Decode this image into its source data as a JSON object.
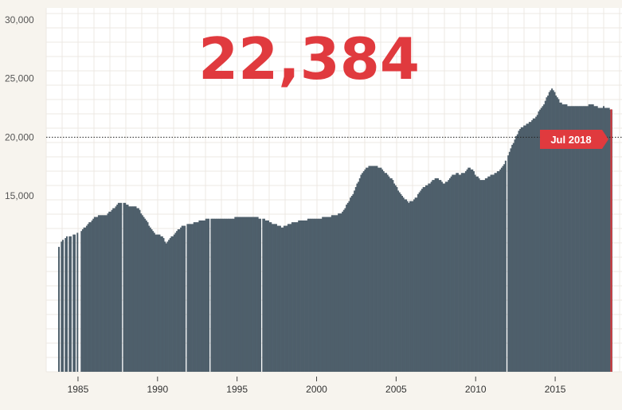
{
  "headline": "22,384",
  "colors": {
    "background": "#f7f4ee",
    "plot_background": "#ffffff",
    "grid": "#ece9e3",
    "area": "#4e5f6b",
    "accent": "#e03a3e"
  },
  "callout": {
    "label": "Jul 2018"
  },
  "chart_data": {
    "type": "area",
    "title": "",
    "xlabel": "",
    "ylabel": "",
    "xlim": [
      1983.0,
      2018.6
    ],
    "ylim": [
      0,
      30000
    ],
    "yticks": [
      15000,
      20000,
      25000,
      30000
    ],
    "ytick_labels": [
      "15,000",
      "20,000",
      "25,000",
      "30,000"
    ],
    "xticks": [
      1985,
      1990,
      1995,
      2000,
      2005,
      2010,
      2015
    ],
    "reference_line": 20000,
    "grid": true,
    "gaps": [
      1985.0,
      1987.75,
      1991.75,
      1993.25,
      1996.5,
      2011.9
    ],
    "missing_before": 1983.75,
    "series": [
      {
        "points": [
          [
            1983.75,
            10700
          ],
          [
            1984.0,
            11200
          ],
          [
            1984.25,
            11500
          ],
          [
            1984.5,
            11600
          ],
          [
            1985.0,
            11900
          ],
          [
            1985.25,
            12100
          ],
          [
            1985.5,
            12500
          ],
          [
            1985.75,
            12800
          ],
          [
            1986.0,
            13200
          ],
          [
            1986.25,
            13300
          ],
          [
            1986.75,
            13400
          ],
          [
            1987.0,
            13700
          ],
          [
            1987.25,
            14000
          ],
          [
            1987.5,
            14350
          ],
          [
            1987.75,
            14500
          ],
          [
            1988.0,
            14300
          ],
          [
            1988.25,
            14100
          ],
          [
            1988.75,
            14000
          ],
          [
            1989.0,
            13300
          ],
          [
            1989.25,
            12900
          ],
          [
            1989.5,
            12300
          ],
          [
            1989.75,
            11800
          ],
          [
            1990.0,
            11700
          ],
          [
            1990.25,
            11500
          ],
          [
            1990.5,
            11000
          ],
          [
            1990.75,
            11400
          ],
          [
            1991.0,
            11700
          ],
          [
            1991.25,
            12100
          ],
          [
            1991.5,
            12400
          ],
          [
            1991.75,
            12500
          ],
          [
            1992.0,
            12600
          ],
          [
            1992.25,
            12700
          ],
          [
            1992.5,
            12800
          ],
          [
            1992.75,
            12900
          ],
          [
            1993.0,
            13000
          ],
          [
            1993.5,
            13050
          ],
          [
            1994.0,
            13000
          ],
          [
            1994.5,
            13100
          ],
          [
            1995.0,
            13150
          ],
          [
            1995.5,
            13200
          ],
          [
            1996.0,
            13150
          ],
          [
            1996.5,
            13100
          ],
          [
            1997.0,
            12800
          ],
          [
            1997.25,
            12600
          ],
          [
            1997.5,
            12500
          ],
          [
            1997.75,
            12350
          ],
          [
            1998.0,
            12400
          ],
          [
            1998.25,
            12600
          ],
          [
            1998.5,
            12750
          ],
          [
            1999.0,
            12900
          ],
          [
            1999.5,
            13000
          ],
          [
            2000.0,
            13000
          ],
          [
            2000.5,
            13200
          ],
          [
            2001.0,
            13300
          ],
          [
            2001.5,
            13500
          ],
          [
            2001.75,
            14000
          ],
          [
            2002.0,
            14600
          ],
          [
            2002.25,
            15200
          ],
          [
            2002.5,
            16000
          ],
          [
            2002.75,
            16800
          ],
          [
            2003.0,
            17300
          ],
          [
            2003.25,
            17500
          ],
          [
            2003.5,
            17600
          ],
          [
            2003.75,
            17500
          ],
          [
            2004.0,
            17350
          ],
          [
            2004.25,
            17000
          ],
          [
            2004.5,
            16700
          ],
          [
            2004.75,
            16300
          ],
          [
            2005.0,
            15700
          ],
          [
            2005.25,
            15100
          ],
          [
            2005.5,
            14750
          ],
          [
            2005.75,
            14450
          ],
          [
            2006.0,
            14550
          ],
          [
            2006.25,
            14900
          ],
          [
            2006.5,
            15450
          ],
          [
            2006.75,
            15800
          ],
          [
            2007.0,
            16000
          ],
          [
            2007.25,
            16300
          ],
          [
            2007.5,
            16500
          ],
          [
            2007.75,
            16300
          ],
          [
            2008.0,
            16000
          ],
          [
            2008.25,
            16400
          ],
          [
            2008.5,
            16750
          ],
          [
            2008.75,
            16900
          ],
          [
            2009.0,
            16850
          ],
          [
            2009.25,
            16950
          ],
          [
            2009.5,
            17400
          ],
          [
            2009.75,
            17200
          ],
          [
            2010.0,
            16700
          ],
          [
            2010.25,
            16350
          ],
          [
            2010.5,
            16350
          ],
          [
            2010.75,
            16600
          ],
          [
            2011.0,
            16800
          ],
          [
            2011.25,
            16950
          ],
          [
            2011.5,
            17200
          ],
          [
            2011.75,
            17700
          ],
          [
            2012.0,
            18500
          ],
          [
            2012.25,
            19300
          ],
          [
            2012.5,
            20100
          ],
          [
            2012.75,
            20700
          ],
          [
            2013.0,
            21000
          ],
          [
            2013.25,
            21150
          ],
          [
            2013.5,
            21400
          ],
          [
            2013.75,
            21800
          ],
          [
            2014.0,
            22300
          ],
          [
            2014.25,
            22800
          ],
          [
            2014.5,
            23600
          ],
          [
            2014.75,
            24150
          ],
          [
            2015.0,
            23600
          ],
          [
            2015.25,
            23000
          ],
          [
            2015.5,
            22800
          ],
          [
            2015.75,
            22700
          ],
          [
            2016.0,
            22700
          ],
          [
            2016.5,
            22650
          ],
          [
            2017.0,
            22700
          ],
          [
            2017.25,
            22800
          ],
          [
            2017.5,
            22650
          ],
          [
            2017.75,
            22500
          ],
          [
            2018.0,
            22600
          ],
          [
            2018.25,
            22450
          ],
          [
            2018.5,
            22384
          ]
        ]
      }
    ]
  }
}
